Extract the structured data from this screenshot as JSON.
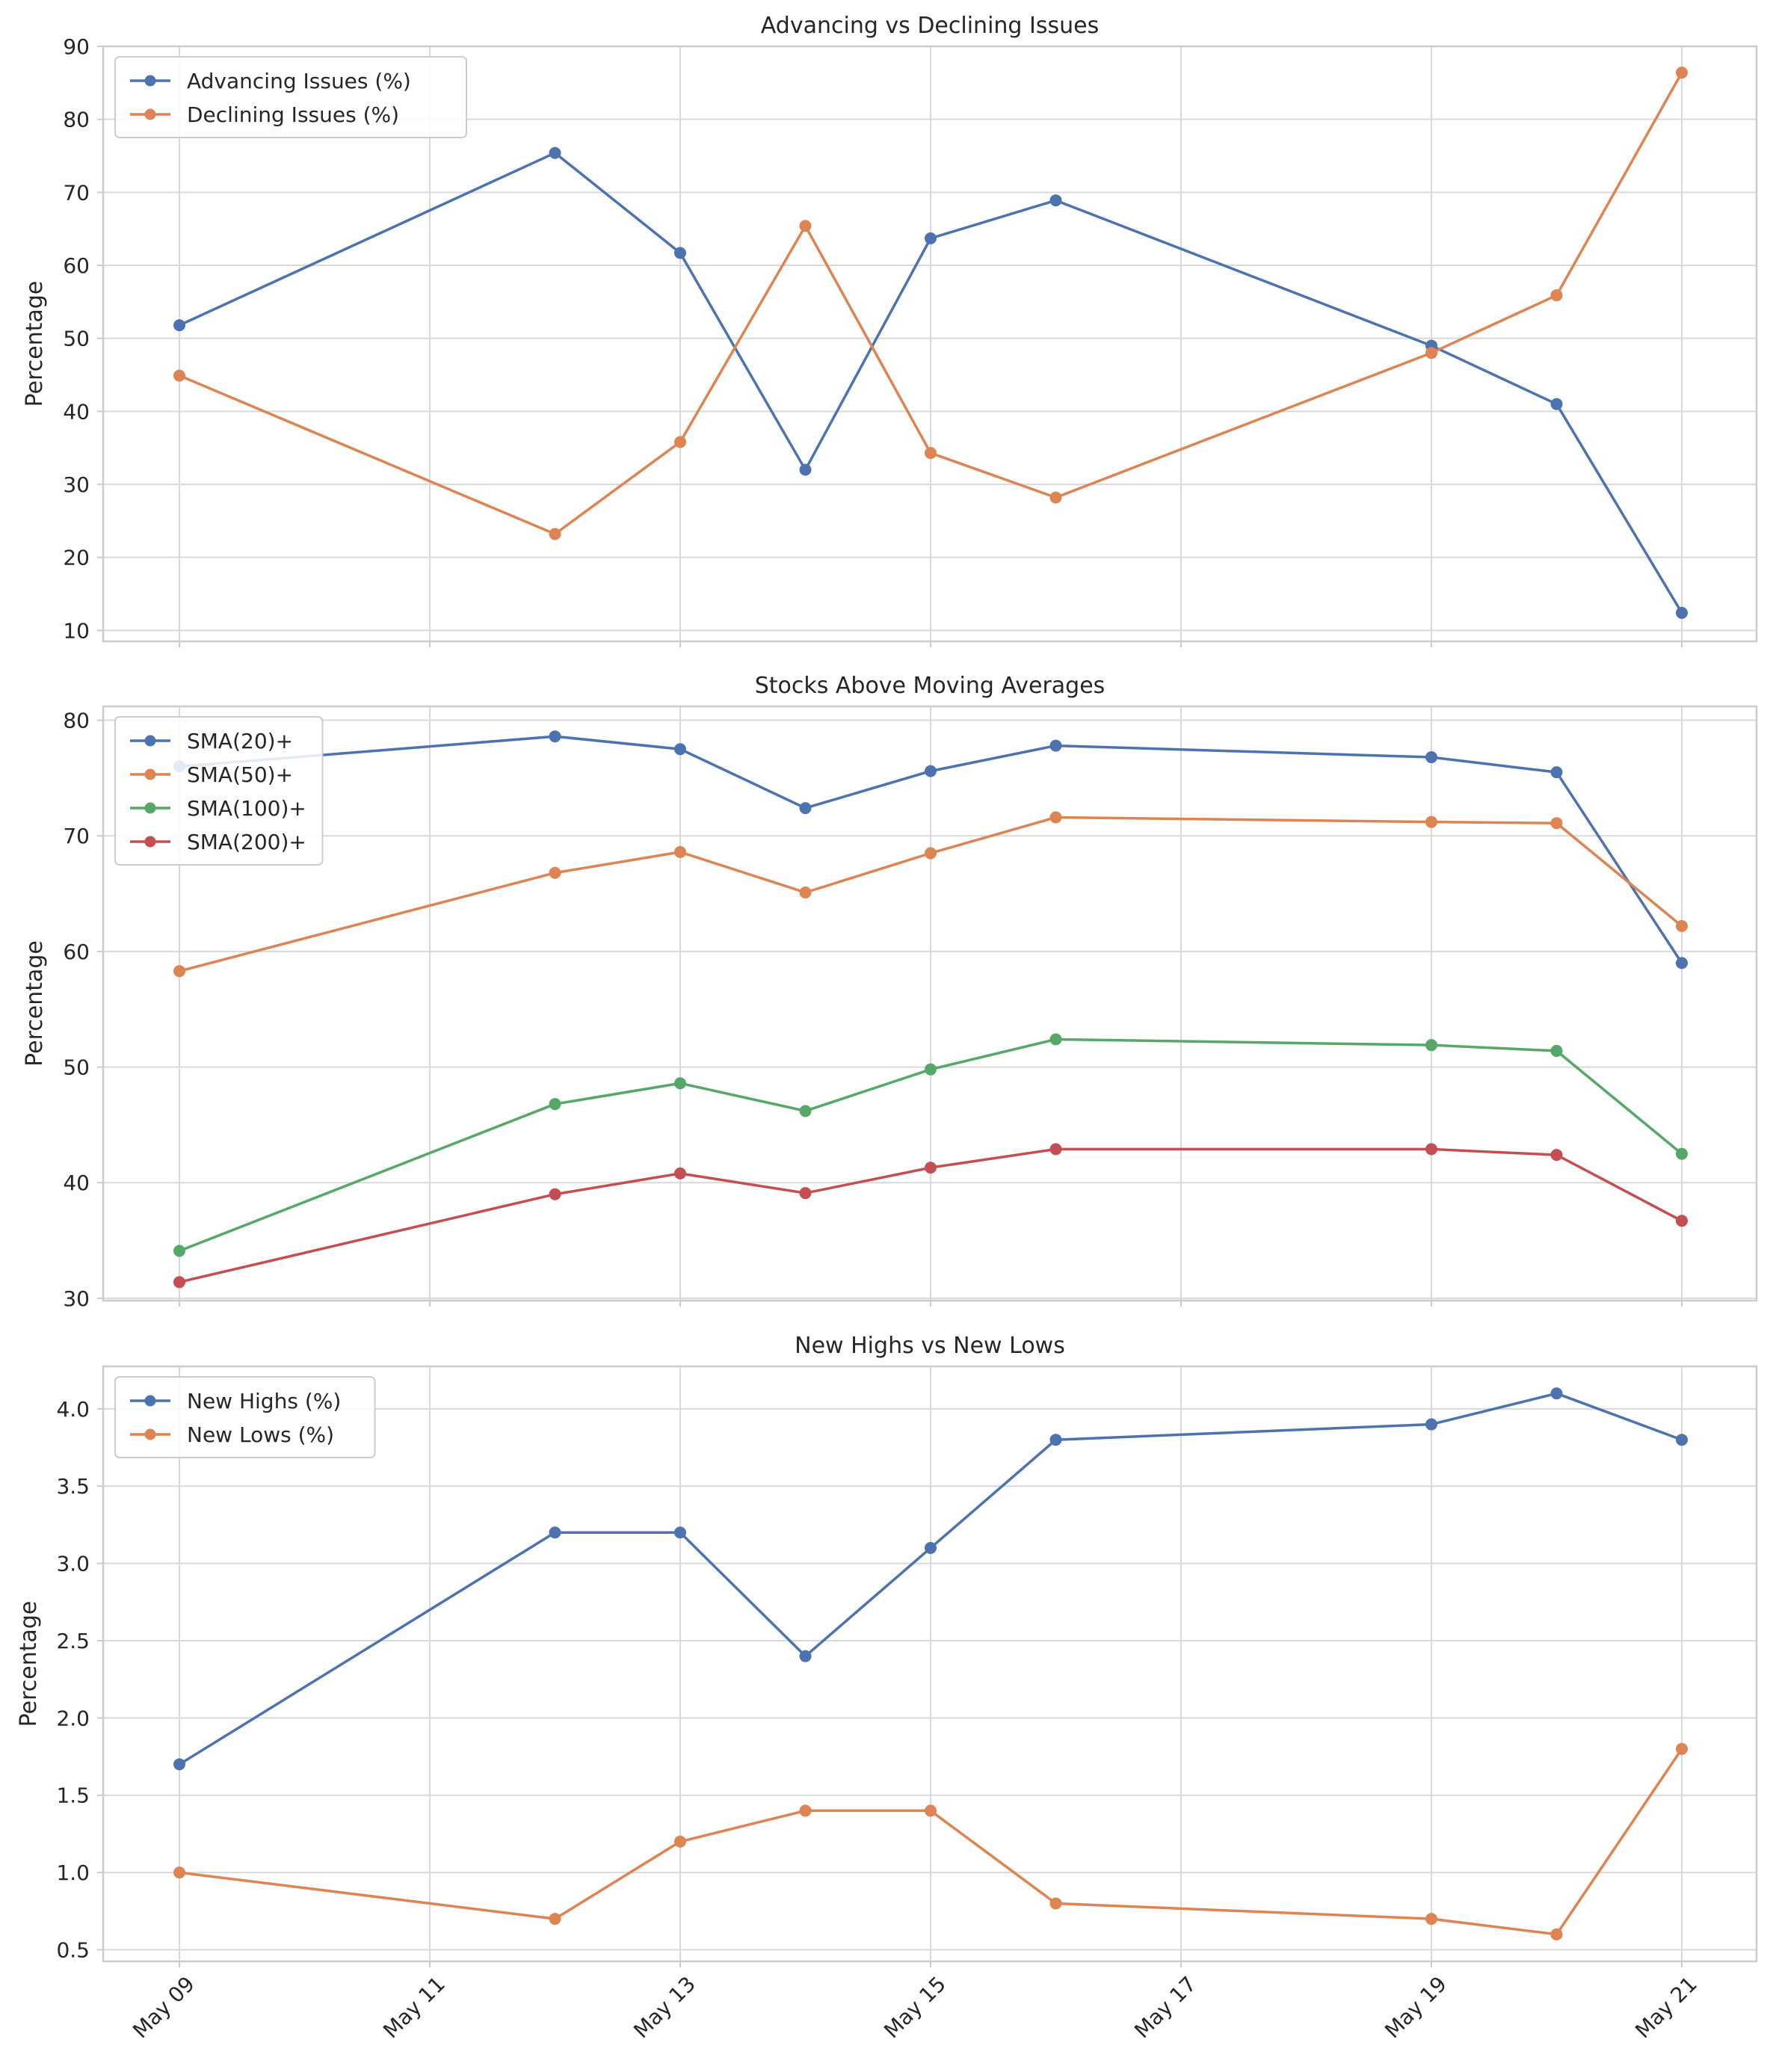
{
  "chart_data": [
    {
      "type": "line",
      "title": "Advancing vs Declining Issues",
      "xlabel": "",
      "ylabel": "Percentage",
      "x": [
        "2025-05-09",
        "2025-05-12",
        "2025-05-13",
        "2025-05-14",
        "2025-05-15",
        "2025-05-16",
        "2025-05-19",
        "2025-05-20",
        "2025-05-21"
      ],
      "ylim": [
        8.5,
        90
      ],
      "yticks": [
        10,
        20,
        30,
        40,
        50,
        60,
        70,
        80,
        90
      ],
      "grid": true,
      "legend": "top-left",
      "series": [
        {
          "name": "Advancing Issues (%)",
          "color": "#4c72b0",
          "values": [
            51.8,
            75.4,
            61.7,
            32.0,
            63.7,
            68.9,
            49.0,
            41.0,
            12.4
          ]
        },
        {
          "name": "Declining Issues (%)",
          "color": "#dd8452",
          "values": [
            44.9,
            23.2,
            35.8,
            65.4,
            34.3,
            28.2,
            48.0,
            55.9,
            86.4
          ]
        }
      ]
    },
    {
      "type": "line",
      "title": "Stocks Above Moving Averages",
      "xlabel": "",
      "ylabel": "Percentage",
      "x": [
        "2025-05-09",
        "2025-05-12",
        "2025-05-13",
        "2025-05-14",
        "2025-05-15",
        "2025-05-16",
        "2025-05-19",
        "2025-05-20",
        "2025-05-21"
      ],
      "ylim": [
        29.8,
        81.2
      ],
      "yticks": [
        30,
        40,
        50,
        60,
        70,
        80
      ],
      "grid": true,
      "legend": "top-left",
      "series": [
        {
          "name": "SMA(20)+",
          "color": "#4c72b0",
          "values": [
            76.0,
            78.6,
            77.5,
            72.4,
            75.6,
            77.8,
            76.8,
            75.5,
            59.0
          ]
        },
        {
          "name": "SMA(50)+",
          "color": "#dd8452",
          "values": [
            58.3,
            66.8,
            68.6,
            65.1,
            68.5,
            71.6,
            71.2,
            71.1,
            62.2
          ]
        },
        {
          "name": "SMA(100)+",
          "color": "#55a868",
          "values": [
            34.1,
            46.8,
            48.6,
            46.2,
            49.8,
            52.4,
            51.9,
            51.4,
            42.5
          ]
        },
        {
          "name": "SMA(200)+",
          "color": "#c44e52",
          "values": [
            31.4,
            39.0,
            40.8,
            39.1,
            41.3,
            42.9,
            42.9,
            42.4,
            36.7
          ]
        }
      ]
    },
    {
      "type": "line",
      "title": "New Highs vs New Lows",
      "xlabel": "",
      "ylabel": "Percentage",
      "x": [
        "2025-05-09",
        "2025-05-12",
        "2025-05-13",
        "2025-05-14",
        "2025-05-15",
        "2025-05-16",
        "2025-05-19",
        "2025-05-20",
        "2025-05-21"
      ],
      "ylim": [
        0.425,
        4.275
      ],
      "yticks": [
        0.5,
        1.0,
        1.5,
        2.0,
        2.5,
        3.0,
        3.5,
        4.0
      ],
      "grid": true,
      "legend": "top-left",
      "series": [
        {
          "name": "New Highs (%)",
          "color": "#4c72b0",
          "values": [
            1.7,
            3.2,
            3.2,
            2.4,
            3.1,
            3.8,
            3.9,
            4.1,
            3.8
          ]
        },
        {
          "name": "New Lows (%)",
          "color": "#dd8452",
          "values": [
            1.0,
            0.7,
            1.2,
            1.4,
            1.4,
            0.8,
            0.7,
            0.6,
            1.8
          ]
        }
      ]
    }
  ],
  "x_axis": {
    "range": [
      "2025-05-08",
      "2025-05-21"
    ],
    "ticks": [
      {
        "date": "2025-05-09",
        "label": "May 09"
      },
      {
        "date": "2025-05-11",
        "label": "May 11"
      },
      {
        "date": "2025-05-13",
        "label": "May 13"
      },
      {
        "date": "2025-05-15",
        "label": "May 15"
      },
      {
        "date": "2025-05-17",
        "label": "May 17"
      },
      {
        "date": "2025-05-19",
        "label": "May 19"
      },
      {
        "date": "2025-05-21",
        "label": "May 21"
      }
    ]
  }
}
